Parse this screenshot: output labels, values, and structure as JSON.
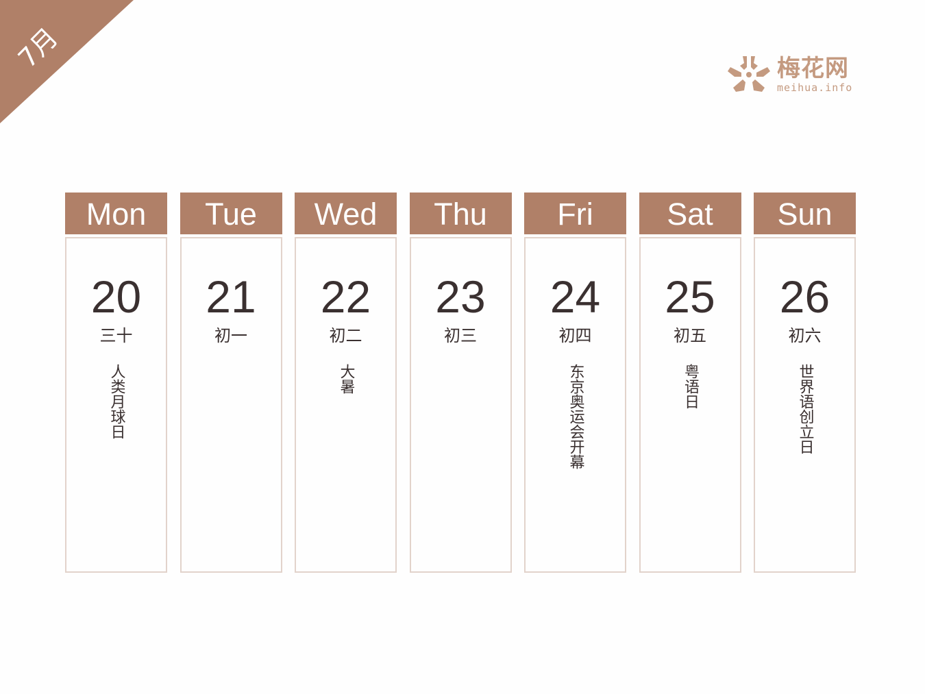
{
  "month": "7月",
  "logo": {
    "cn": "梅花网",
    "en": "meihua.info",
    "color": "#c49a80"
  },
  "accent": "#b08068",
  "days": [
    {
      "weekday": "Mon",
      "date": "20",
      "lunar": "三十",
      "event": "人类月球日"
    },
    {
      "weekday": "Tue",
      "date": "21",
      "lunar": "初一",
      "event": ""
    },
    {
      "weekday": "Wed",
      "date": "22",
      "lunar": "初二",
      "event": "大暑"
    },
    {
      "weekday": "Thu",
      "date": "23",
      "lunar": "初三",
      "event": ""
    },
    {
      "weekday": "Fri",
      "date": "24",
      "lunar": "初四",
      "event": "东京奥运会开幕"
    },
    {
      "weekday": "Sat",
      "date": "25",
      "lunar": "初五",
      "event": "粤语日"
    },
    {
      "weekday": "Sun",
      "date": "26",
      "lunar": "初六",
      "event": "世界语创立日"
    }
  ]
}
